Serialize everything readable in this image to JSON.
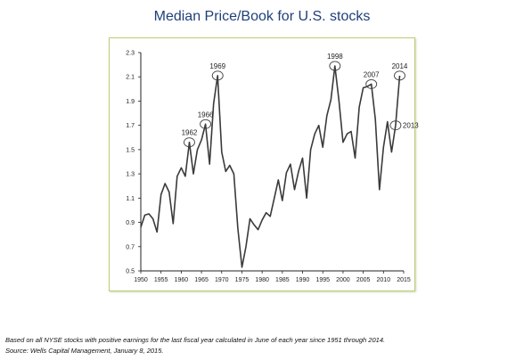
{
  "chart_data": {
    "type": "line",
    "title": "Median Price/Book for U.S. stocks",
    "xlim": [
      1950,
      2015
    ],
    "ylim": [
      0.5,
      2.3
    ],
    "x_ticks": [
      1950,
      1955,
      1960,
      1965,
      1970,
      1975,
      1980,
      1985,
      1990,
      1995,
      2000,
      2005,
      2010,
      2015
    ],
    "y_ticks": [
      "2.3",
      "2.1",
      "1.9",
      "1.7",
      "1.5",
      "1.3",
      "1.1",
      "0.9",
      "0.7",
      "0.5"
    ],
    "series": [
      {
        "color": "#3a3a3a",
        "x": [
          1950,
          1951,
          1952,
          1953,
          1954,
          1955,
          1956,
          1957,
          1958,
          1959,
          1960,
          1961,
          1962,
          1963,
          1964,
          1965,
          1966,
          1967,
          1968,
          1969,
          1970,
          1971,
          1972,
          1973,
          1974,
          1975,
          1976,
          1977,
          1978,
          1979,
          1980,
          1981,
          1982,
          1983,
          1984,
          1985,
          1986,
          1987,
          1988,
          1989,
          1990,
          1991,
          1992,
          1993,
          1994,
          1995,
          1996,
          1997,
          1998,
          1999,
          2000,
          2001,
          2002,
          2003,
          2004,
          2005,
          2006,
          2007,
          2008,
          2009,
          2010,
          2011,
          2012,
          2013,
          2014
        ],
        "y": [
          0.86,
          0.96,
          0.97,
          0.93,
          0.82,
          1.13,
          1.22,
          1.15,
          0.89,
          1.28,
          1.35,
          1.28,
          1.56,
          1.3,
          1.5,
          1.58,
          1.71,
          1.38,
          1.88,
          2.11,
          1.48,
          1.32,
          1.37,
          1.3,
          0.85,
          0.53,
          0.7,
          0.93,
          0.88,
          0.84,
          0.92,
          0.98,
          0.95,
          1.1,
          1.25,
          1.08,
          1.31,
          1.38,
          1.17,
          1.32,
          1.43,
          1.1,
          1.5,
          1.63,
          1.7,
          1.52,
          1.78,
          1.91,
          2.19,
          1.9,
          1.56,
          1.63,
          1.65,
          1.43,
          1.85,
          2.01,
          2.02,
          2.04,
          1.75,
          1.17,
          1.52,
          1.73,
          1.48,
          1.7,
          2.11
        ]
      }
    ],
    "annotations": [
      {
        "label": "1962",
        "x": 1962,
        "y": 1.56,
        "label_pos": "above"
      },
      {
        "label": "1966",
        "x": 1966,
        "y": 1.71,
        "label_pos": "above"
      },
      {
        "label": "1969",
        "x": 1969,
        "y": 2.11,
        "label_pos": "above"
      },
      {
        "label": "1998",
        "x": 1998,
        "y": 2.19,
        "label_pos": "above"
      },
      {
        "label": "2007",
        "x": 2007,
        "y": 2.04,
        "label_pos": "above"
      },
      {
        "label": "2014",
        "x": 2014,
        "y": 2.11,
        "label_pos": "above"
      },
      {
        "label": "2013",
        "x": 2013,
        "y": 1.7,
        "label_pos": "right"
      }
    ],
    "grid": false,
    "legend": "none"
  },
  "footnotes": [
    "Based on all NYSE stocks with positive earnings for the last fiscal year calculated in June of each year since 1951 through 2014.",
    "Source: Wells Capital Management, January 8, 2015."
  ]
}
